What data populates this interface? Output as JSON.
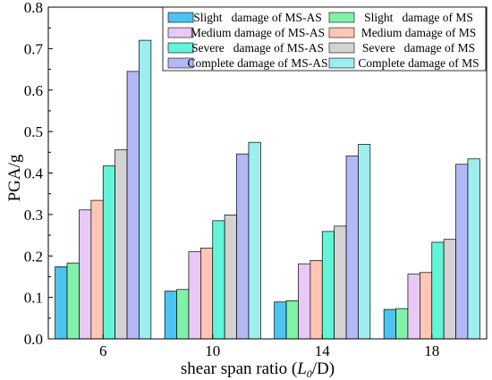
{
  "chart_data": {
    "type": "bar",
    "xlabel_prefix": "shear span ratio (",
    "xlabel_var": "L",
    "xlabel_sub": "0",
    "xlabel_suffix": "/D)",
    "ylabel": "PGA/g",
    "ylim": [
      0,
      0.8
    ],
    "yticks": [
      "0.0",
      "0.1",
      "0.2",
      "0.3",
      "0.4",
      "0.5",
      "0.6",
      "0.7",
      "0.8"
    ],
    "categories": [
      "6",
      "10",
      "14",
      "18"
    ],
    "grid": false,
    "legend_position": "top-right",
    "series": [
      {
        "name": "Slight   damage of MS-AS",
        "color": "#4dc3f0",
        "values": [
          0.174,
          0.115,
          0.089,
          0.071
        ]
      },
      {
        "name": "Slight   damage of MS",
        "color": "#7ff2a8",
        "values": [
          0.183,
          0.119,
          0.092,
          0.073
        ]
      },
      {
        "name": "Medium damage of MS-AS",
        "color": "#e8c8f5",
        "values": [
          0.311,
          0.21,
          0.181,
          0.156
        ]
      },
      {
        "name": "Medium damage of MS",
        "color": "#ffc5b5",
        "values": [
          0.334,
          0.219,
          0.189,
          0.16
        ]
      },
      {
        "name": "Severe   damage of MS-AS",
        "color": "#63f5d8",
        "values": [
          0.417,
          0.285,
          0.259,
          0.233
        ]
      },
      {
        "name": "Severe   damage of MS",
        "color": "#d3d3d3",
        "values": [
          0.456,
          0.299,
          0.272,
          0.24
        ]
      },
      {
        "name": "Complete damage of MS-AS",
        "color": "#b3b8f6",
        "values": [
          0.645,
          0.446,
          0.441,
          0.421
        ]
      },
      {
        "name": "Complete damage of MS",
        "color": "#9eeef0",
        "values": [
          0.72,
          0.474,
          0.469,
          0.434
        ]
      }
    ]
  }
}
